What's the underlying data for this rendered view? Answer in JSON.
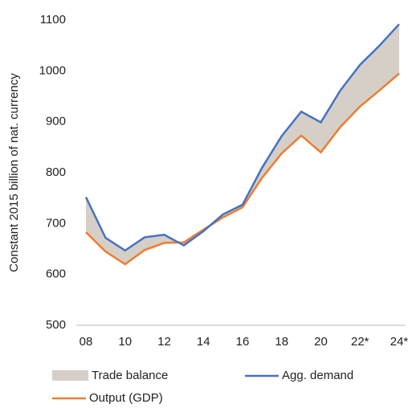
{
  "chart_data": {
    "type": "line",
    "y_label": "Constant 2015 billion of nat. currency",
    "categories": [
      "08",
      null,
      "10",
      null,
      "12",
      null,
      "14",
      null,
      "16",
      null,
      "18",
      null,
      "20",
      null,
      "22*",
      null,
      "24*"
    ],
    "series": [
      {
        "name": "Agg. demand",
        "color": "#4472c4",
        "values": [
          752,
          672,
          647,
          673,
          678,
          657,
          685,
          718,
          737,
          810,
          872,
          920,
          899,
          962,
          1012,
          1050,
          1092
        ]
      },
      {
        "name": "Output (GDP)",
        "color": "#ed7d31",
        "values": [
          683,
          645,
          620,
          648,
          662,
          663,
          688,
          712,
          732,
          790,
          838,
          873,
          840,
          890,
          930,
          962,
          995
        ]
      }
    ],
    "fill_between": {
      "name": "Trade balance",
      "color": "#d6cfc7"
    },
    "ylim": [
      500,
      1100
    ],
    "yticks": [
      500,
      600,
      700,
      800,
      900,
      1000,
      1100
    ],
    "grid": false
  }
}
